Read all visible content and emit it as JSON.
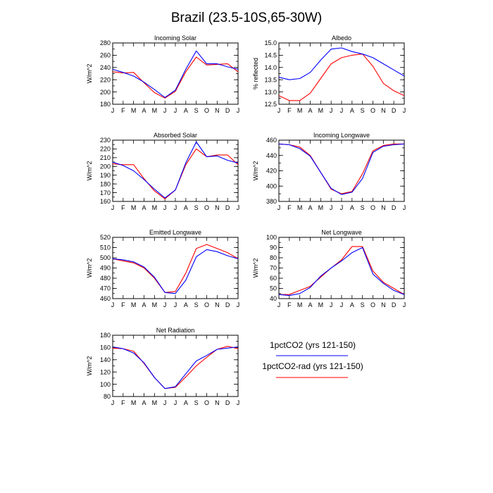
{
  "figure": {
    "title": "Brazil (23.5-10S,65-30W)"
  },
  "legend": {
    "entries": [
      {
        "label": "1pctCO2 (yrs 121-150)",
        "color": "#0000ff"
      },
      {
        "label": "1pctCO2-rad (yrs 121-150)",
        "color": "#ff0000"
      }
    ]
  },
  "chart_data": [
    {
      "type": "line",
      "title": "Incoming Solar",
      "ylabel": "W/m^2",
      "categories": [
        "J",
        "F",
        "M",
        "A",
        "M",
        "J",
        "J",
        "A",
        "S",
        "O",
        "N",
        "D",
        "J"
      ],
      "ylim": [
        180,
        280
      ],
      "yticks": [
        180,
        200,
        220,
        240,
        260,
        280
      ],
      "series": [
        {
          "name": "1pctCO2 (yrs 121-150)",
          "color": "#0000ff",
          "values": [
            237,
            232,
            226,
            216,
            204,
            191,
            203,
            237,
            267,
            246,
            246,
            241,
            237
          ]
        },
        {
          "name": "1pctCO2-rad (yrs 121-150)",
          "color": "#ff0000",
          "values": [
            233,
            231,
            232,
            215,
            199,
            190,
            201,
            233,
            257,
            244,
            245,
            246,
            233
          ]
        }
      ]
    },
    {
      "type": "line",
      "title": "Albedo",
      "ylabel": "% reflected",
      "categories": [
        "J",
        "F",
        "M",
        "A",
        "M",
        "J",
        "J",
        "A",
        "S",
        "O",
        "N",
        "D",
        "J"
      ],
      "ylim": [
        12.5,
        15.0
      ],
      "yticks": [
        12.5,
        13.0,
        13.5,
        14.0,
        14.5,
        15.0
      ],
      "series": [
        {
          "name": "1pctCO2 (yrs 121-150)",
          "color": "#0000ff",
          "values": [
            13.6,
            13.5,
            13.55,
            13.8,
            14.3,
            14.75,
            14.8,
            14.65,
            14.55,
            14.4,
            14.15,
            13.9,
            13.65
          ]
        },
        {
          "name": "1pctCO2-rad (yrs 121-150)",
          "color": "#ff0000",
          "values": [
            12.85,
            12.65,
            12.65,
            12.95,
            13.55,
            14.15,
            14.4,
            14.5,
            14.55,
            14.05,
            13.35,
            13.05,
            12.85
          ]
        }
      ]
    },
    {
      "type": "line",
      "title": "Absorbed Solar",
      "ylabel": "W/m^2",
      "categories": [
        "J",
        "F",
        "M",
        "A",
        "M",
        "J",
        "J",
        "A",
        "S",
        "O",
        "N",
        "D",
        "J"
      ],
      "ylim": [
        160,
        230
      ],
      "yticks": [
        160,
        170,
        180,
        190,
        200,
        210,
        220,
        230
      ],
      "series": [
        {
          "name": "1pctCO2 (yrs 121-150)",
          "color": "#0000ff",
          "values": [
            205,
            201,
            195,
            185,
            174,
            164,
            173,
            204,
            228,
            211,
            212,
            207,
            204
          ]
        },
        {
          "name": "1pctCO2-rad (yrs 121-150)",
          "color": "#ff0000",
          "values": [
            203,
            202,
            202,
            186,
            172,
            163,
            173,
            202,
            220,
            211,
            213,
            213,
            202
          ]
        }
      ]
    },
    {
      "type": "line",
      "title": "Incoming Longwave",
      "ylabel": "W/m^2",
      "categories": [
        "J",
        "F",
        "M",
        "A",
        "M",
        "J",
        "J",
        "A",
        "S",
        "O",
        "N",
        "D",
        "J"
      ],
      "ylim": [
        380,
        460
      ],
      "yticks": [
        380,
        400,
        420,
        440,
        460
      ],
      "series": [
        {
          "name": "1pctCO2 (yrs 121-150)",
          "color": "#0000ff",
          "values": [
            455,
            454,
            449,
            439,
            418,
            397,
            389,
            392,
            410,
            444,
            452,
            454,
            455
          ]
        },
        {
          "name": "1pctCO2-rad (yrs 121-150)",
          "color": "#ff0000",
          "values": [
            455,
            454,
            451,
            440,
            418,
            396,
            390,
            393,
            416,
            446,
            453,
            455,
            455
          ]
        }
      ]
    },
    {
      "type": "line",
      "title": "Emitted Longwave",
      "ylabel": "W/m^2",
      "categories": [
        "J",
        "F",
        "M",
        "A",
        "M",
        "J",
        "J",
        "A",
        "S",
        "O",
        "N",
        "D",
        "J"
      ],
      "ylim": [
        460,
        520
      ],
      "yticks": [
        460,
        470,
        480,
        490,
        500,
        510,
        520
      ],
      "series": [
        {
          "name": "1pctCO2 (yrs 121-150)",
          "color": "#0000ff",
          "values": [
            499,
            498,
            496,
            491,
            481,
            466,
            465,
            478,
            501,
            508,
            506,
            502,
            499
          ]
        },
        {
          "name": "1pctCO2-rad (yrs 121-150)",
          "color": "#ff0000",
          "values": [
            499,
            497,
            495,
            490,
            480,
            466,
            467,
            485,
            509,
            513,
            509,
            505,
            499
          ]
        }
      ]
    },
    {
      "type": "line",
      "title": "Net Longwave",
      "ylabel": "W/m^2",
      "categories": [
        "J",
        "F",
        "M",
        "A",
        "M",
        "J",
        "J",
        "A",
        "S",
        "O",
        "N",
        "D",
        "J"
      ],
      "ylim": [
        40,
        100
      ],
      "yticks": [
        40,
        50,
        60,
        70,
        80,
        90,
        100
      ],
      "series": [
        {
          "name": "1pctCO2 (yrs 121-150)",
          "color": "#0000ff",
          "values": [
            44,
            43,
            45,
            51,
            62,
            70,
            77,
            85,
            90,
            64,
            55,
            48,
            44
          ]
        },
        {
          "name": "1pctCO2-rad (yrs 121-150)",
          "color": "#ff0000",
          "values": [
            44,
            44,
            48,
            52,
            61,
            70,
            78,
            91,
            91,
            67,
            56,
            50,
            44
          ]
        }
      ]
    },
    {
      "type": "line",
      "title": "Net Radiation",
      "ylabel": "W/m^2",
      "categories": [
        "J",
        "F",
        "M",
        "A",
        "M",
        "J",
        "J",
        "A",
        "S",
        "O",
        "N",
        "D",
        "J"
      ],
      "ylim": [
        80,
        180
      ],
      "yticks": [
        80,
        100,
        120,
        140,
        160,
        180
      ],
      "series": [
        {
          "name": "1pctCO2 (yrs 121-150)",
          "color": "#0000ff",
          "values": [
            161,
            158,
            151,
            135,
            111,
            93,
            96,
            117,
            138,
            147,
            157,
            159,
            161
          ]
        },
        {
          "name": "1pctCO2-rad (yrs 121-150)",
          "color": "#ff0000",
          "values": [
            159,
            158,
            154,
            134,
            111,
            93,
            95,
            112,
            130,
            144,
            157,
            162,
            158
          ]
        }
      ]
    }
  ]
}
